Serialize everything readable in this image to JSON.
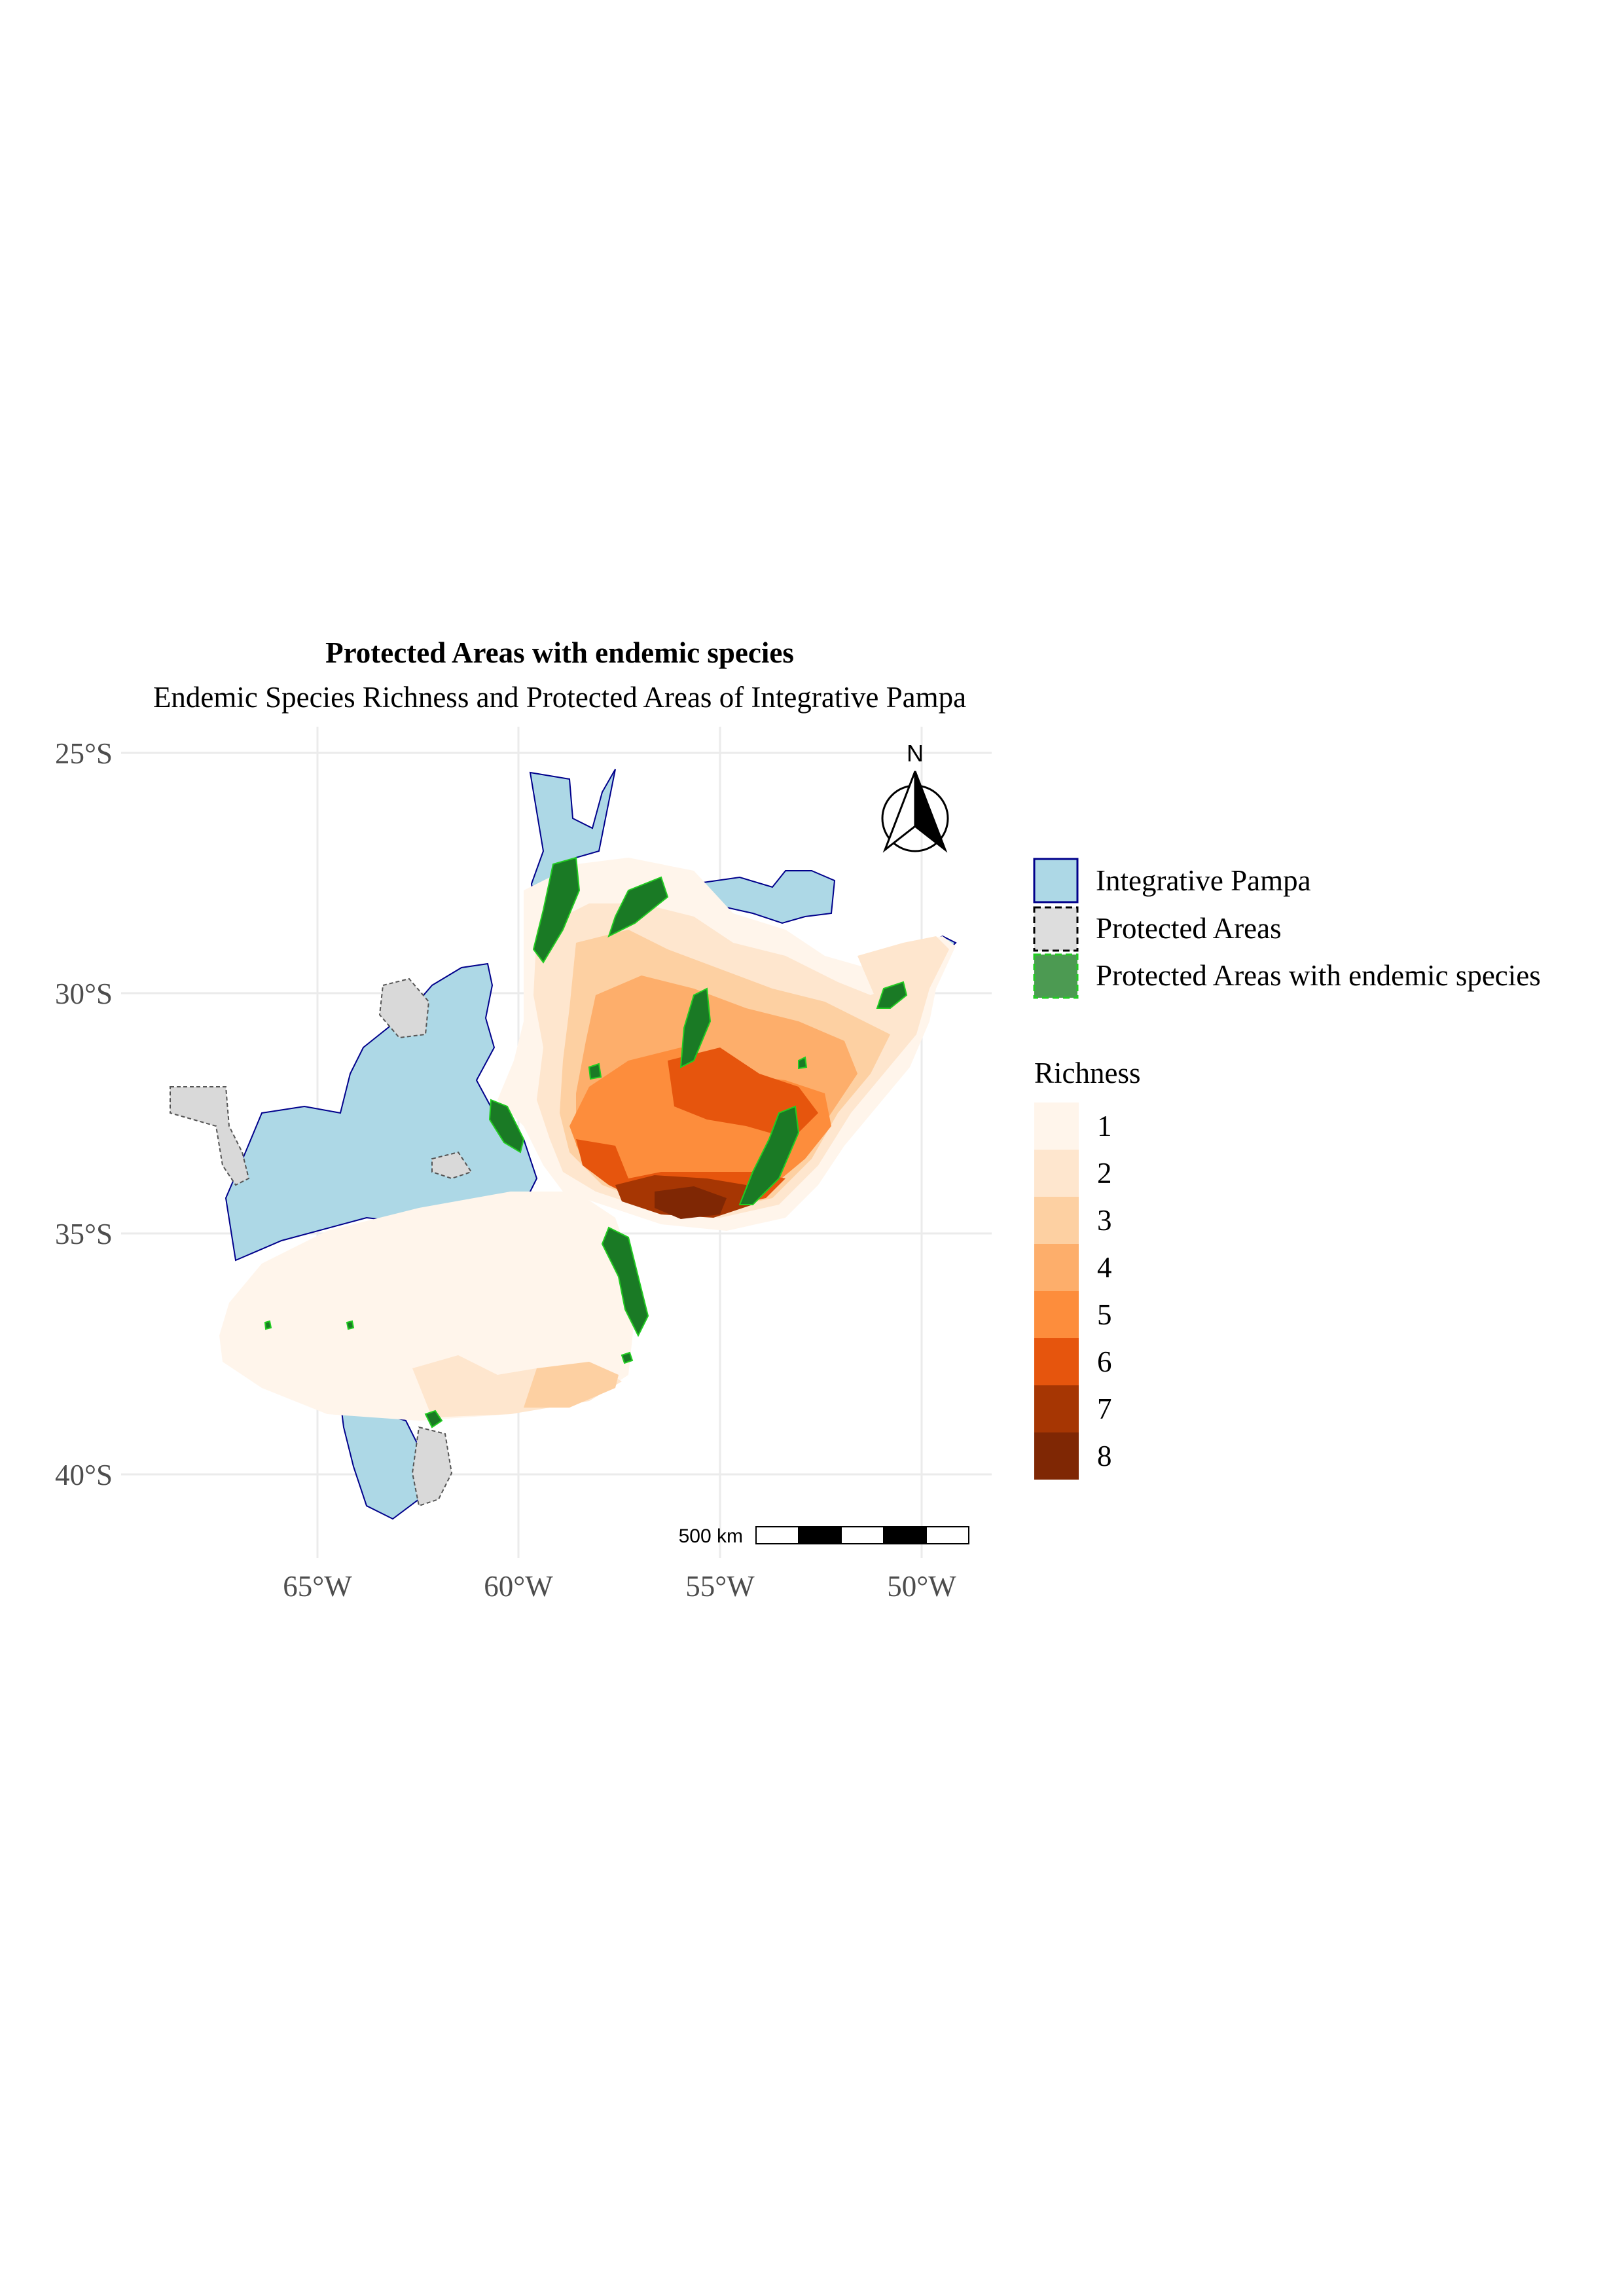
{
  "chart_data": {
    "type": "map",
    "title": "Protected Areas with endemic species",
    "subtitle": "Endemic Species Richness and Protected Areas of Integrative Pampa",
    "lon_ticks": [
      "65°W",
      "60°W",
      "55°W",
      "50°W"
    ],
    "lat_ticks": [
      "25°S",
      "30°S",
      "35°S",
      "40°S"
    ],
    "layers_legend": [
      {
        "label": "Integrative Pampa",
        "fill": "#add8e6",
        "stroke": "#00008b"
      },
      {
        "label": "Protected Areas",
        "fill": "#dddddd",
        "stroke": "#000000"
      },
      {
        "label": "Protected Areas with endemic species",
        "fill": "#4c9a52",
        "stroke": "#22cc22"
      }
    ],
    "richness": {
      "title": "Richness",
      "classes": [
        {
          "label": "1",
          "color": "#fff5eb"
        },
        {
          "label": "2",
          "color": "#fee6ce"
        },
        {
          "label": "3",
          "color": "#fdd0a2"
        },
        {
          "label": "4",
          "color": "#fdae6b"
        },
        {
          "label": "5",
          "color": "#fd8d3c"
        },
        {
          "label": "6",
          "color": "#e6550d"
        },
        {
          "label": "7",
          "color": "#a63603"
        },
        {
          "label": "8",
          "color": "#7f2704"
        }
      ]
    },
    "scale_bar": "500 km",
    "north_arrow": "N",
    "grid": true
  }
}
